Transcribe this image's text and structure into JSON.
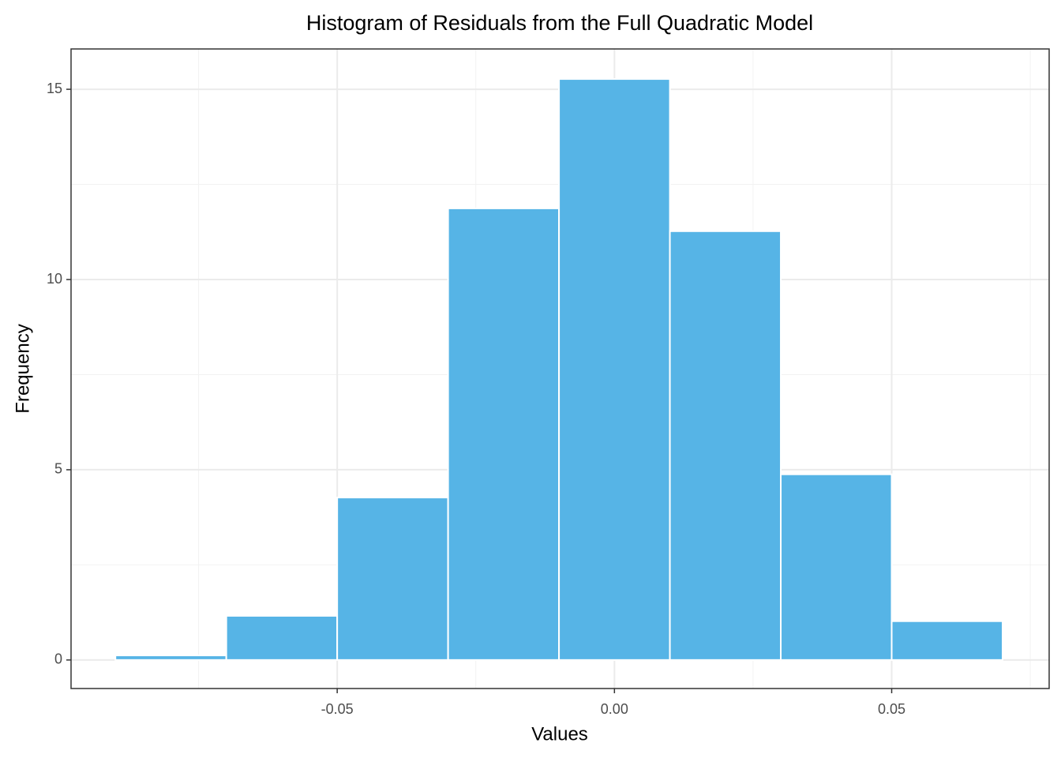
{
  "chart_data": {
    "type": "histogram",
    "title": "Histogram of Residuals from the Full Quadratic Model",
    "x_label": "Values",
    "y_label": "Frequency",
    "bins": [
      -0.09,
      -0.07,
      -0.05,
      -0.03,
      -0.01,
      0.01,
      0.03,
      0.05,
      0.07
    ],
    "values": [
      0.12,
      1.16,
      4.27,
      11.87,
      15.27,
      11.27,
      4.88,
      1.02
    ],
    "color": "#56b4e6",
    "xlim": [
      -0.098,
      0.0784
    ],
    "ylim": [
      -0.75,
      16.06
    ],
    "xticks": [
      -0.05,
      {
        "value": 0,
        "label": "0.00"
      },
      0.05
    ],
    "yticks": [
      0,
      5,
      10,
      15
    ],
    "x_minor_ticks": [
      -0.075,
      -0.025,
      0.025,
      0.075
    ],
    "y_minor_ticks": [
      2.5,
      7.5,
      12.5
    ],
    "grid": true
  }
}
